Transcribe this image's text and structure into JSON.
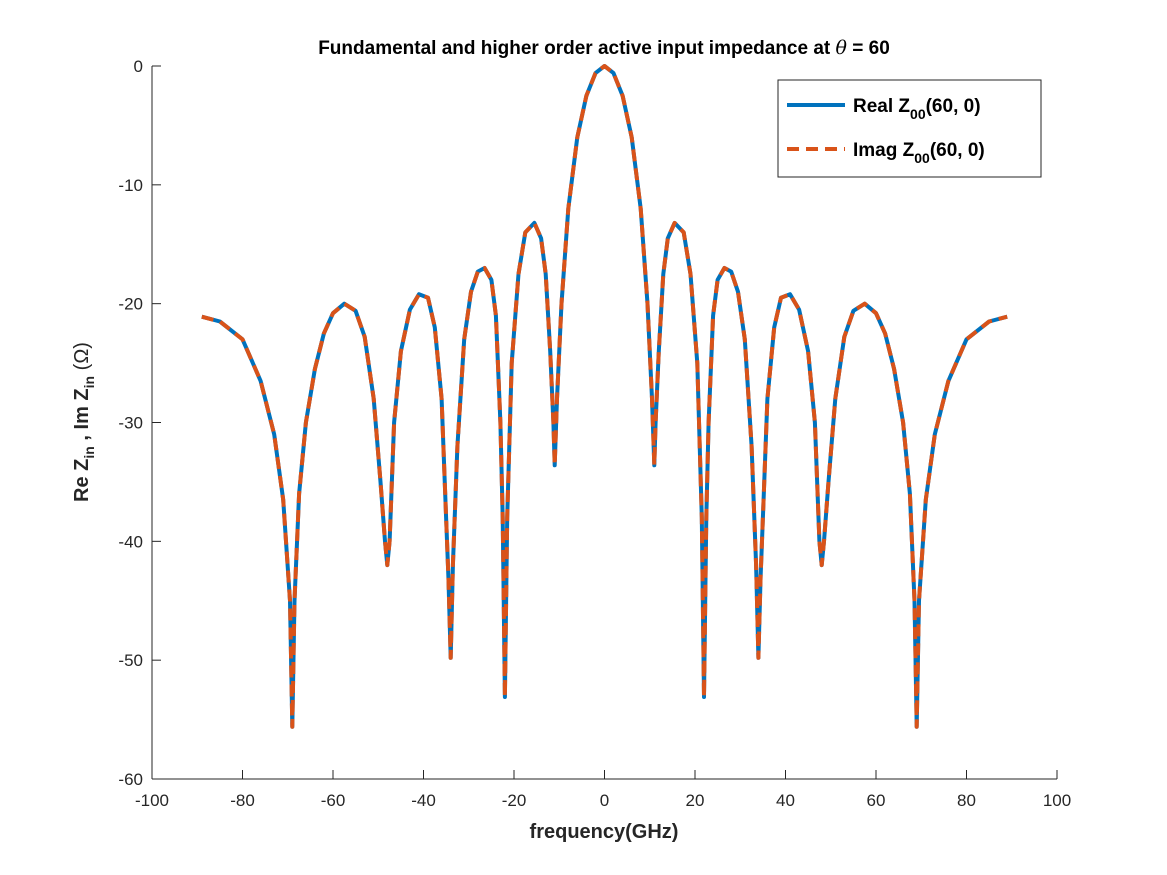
{
  "chart_data": {
    "type": "line",
    "title": "Fundamental and higher order active input impedance at θ = 60",
    "xlabel": "frequency(GHz)",
    "ylabel": "Re Zin , Im Zin (Ω)",
    "xlim": [
      -100,
      100
    ],
    "ylim": [
      -60,
      0
    ],
    "xticks": [
      -100,
      -80,
      -60,
      -40,
      -20,
      0,
      20,
      40,
      60,
      80,
      100
    ],
    "yticks": [
      0,
      -10,
      -20,
      -30,
      -40,
      -50,
      -60
    ],
    "grid": false,
    "legend_position": "top-right",
    "x": [
      -89,
      -85,
      -80,
      -76,
      -73,
      -71,
      -69.5,
      -69,
      -68.5,
      -67.5,
      -66,
      -64,
      -62,
      -60,
      -57.5,
      -55,
      -53,
      -51,
      -49.5,
      -48.5,
      -48,
      -47.5,
      -46.5,
      -45,
      -43,
      -41,
      -39,
      -37.5,
      -36,
      -35,
      -34.5,
      -34,
      -33.5,
      -32.5,
      -31,
      -29.5,
      -28,
      -26.5,
      -25,
      -24,
      -23,
      -22.5,
      -22,
      -21.5,
      -20.5,
      -19,
      -17.5,
      -15.5,
      -14,
      -13,
      -12,
      -11.3,
      -11,
      -10.5,
      -9.5,
      -8,
      -6,
      -4,
      -2,
      0,
      2,
      4,
      6,
      8,
      9.5,
      10.5,
      11,
      11.3,
      12,
      13,
      14,
      15.5,
      17.5,
      19,
      20.5,
      21.5,
      22,
      22.5,
      23,
      24,
      25,
      26.5,
      28,
      29.5,
      31,
      32.5,
      33.5,
      34,
      34.5,
      35,
      36,
      37.5,
      39,
      41,
      43,
      45,
      46.5,
      47.5,
      48,
      48.5,
      49.5,
      51,
      53,
      55,
      57.5,
      60,
      62,
      64,
      66,
      67.5,
      68.5,
      69,
      69.5,
      71,
      73,
      76,
      80,
      85,
      89
    ],
    "series": [
      {
        "name": "Real Z00(60, 0)",
        "color": "#0072BD",
        "style": "solid",
        "values": [
          -21.1,
          -21.5,
          -23.0,
          -26.5,
          -31.0,
          -36.5,
          -45.0,
          -55.6,
          -45.0,
          -36.0,
          -30.0,
          -25.5,
          -22.5,
          -20.8,
          -20.0,
          -20.6,
          -22.8,
          -28.0,
          -35.0,
          -40.0,
          -42.0,
          -40.0,
          -30.0,
          -24.0,
          -20.5,
          -19.2,
          -19.5,
          -22.0,
          -28.0,
          -38.0,
          -43.0,
          -49.8,
          -42.0,
          -32.0,
          -23.0,
          -19.0,
          -17.3,
          -17.0,
          -18.0,
          -21.0,
          -30.0,
          -38.0,
          -53.1,
          -38.0,
          -25.0,
          -17.5,
          -14.0,
          -13.2,
          -14.5,
          -17.5,
          -24.0,
          -30.0,
          -33.6,
          -28.0,
          -20.0,
          -12.0,
          -6.0,
          -2.5,
          -0.6,
          0.0,
          -0.6,
          -2.5,
          -6.0,
          -12.0,
          -20.0,
          -28.0,
          -33.6,
          -30.0,
          -24.0,
          -17.5,
          -14.5,
          -13.2,
          -14.0,
          -17.5,
          -25.0,
          -38.0,
          -53.1,
          -38.0,
          -30.0,
          -21.0,
          -18.0,
          -17.0,
          -17.3,
          -19.0,
          -23.0,
          -32.0,
          -42.0,
          -49.8,
          -43.0,
          -38.0,
          -28.0,
          -22.0,
          -19.5,
          -19.2,
          -20.5,
          -24.0,
          -30.0,
          -40.0,
          -42.0,
          -40.0,
          -35.0,
          -28.0,
          -22.8,
          -20.6,
          -20.0,
          -20.8,
          -22.5,
          -25.5,
          -30.0,
          -36.0,
          -45.0,
          -55.6,
          -45.0,
          -36.5,
          -31.0,
          -26.5,
          -23.0,
          -21.5,
          -21.1
        ]
      },
      {
        "name": "Imag Z00(60, 0)",
        "color": "#D95319",
        "style": "dashed",
        "values": [
          -21.1,
          -21.5,
          -23.0,
          -26.5,
          -31.0,
          -36.5,
          -45.0,
          -55.6,
          -45.0,
          -36.0,
          -30.0,
          -25.5,
          -22.5,
          -20.8,
          -20.0,
          -20.6,
          -22.8,
          -28.0,
          -35.0,
          -40.0,
          -42.0,
          -40.0,
          -30.0,
          -24.0,
          -20.5,
          -19.2,
          -19.5,
          -22.0,
          -28.0,
          -38.0,
          -43.0,
          -49.8,
          -42.0,
          -32.0,
          -23.0,
          -19.0,
          -17.3,
          -17.0,
          -18.0,
          -21.0,
          -30.0,
          -38.0,
          -53.1,
          -38.0,
          -25.0,
          -17.5,
          -14.0,
          -13.2,
          -14.5,
          -17.5,
          -24.0,
          -30.0,
          -33.6,
          -28.0,
          -20.0,
          -12.0,
          -6.0,
          -2.5,
          -0.6,
          0.0,
          -0.6,
          -2.5,
          -6.0,
          -12.0,
          -20.0,
          -28.0,
          -33.6,
          -30.0,
          -24.0,
          -17.5,
          -14.5,
          -13.2,
          -14.0,
          -17.5,
          -25.0,
          -38.0,
          -53.1,
          -38.0,
          -30.0,
          -21.0,
          -18.0,
          -17.0,
          -17.3,
          -19.0,
          -23.0,
          -32.0,
          -42.0,
          -49.8,
          -43.0,
          -38.0,
          -28.0,
          -22.0,
          -19.5,
          -19.2,
          -20.5,
          -24.0,
          -30.0,
          -40.0,
          -42.0,
          -40.0,
          -35.0,
          -28.0,
          -22.8,
          -20.6,
          -20.0,
          -20.8,
          -22.5,
          -25.5,
          -30.0,
          -36.0,
          -45.0,
          -55.6,
          -45.0,
          -36.5,
          -31.0,
          -26.5,
          -23.0,
          -21.5,
          -21.1
        ]
      }
    ]
  }
}
